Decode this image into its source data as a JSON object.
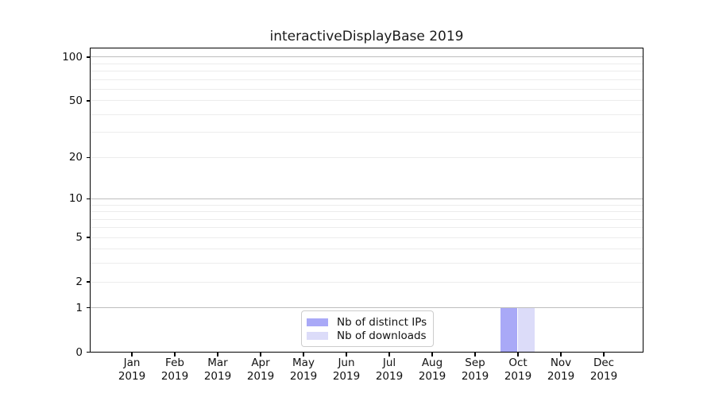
{
  "title": "interactiveDisplayBase 2019",
  "chart_data": {
    "type": "bar",
    "title": "interactiveDisplayBase 2019",
    "categories": [
      {
        "month": "Jan",
        "year": "2019"
      },
      {
        "month": "Feb",
        "year": "2019"
      },
      {
        "month": "Mar",
        "year": "2019"
      },
      {
        "month": "Apr",
        "year": "2019"
      },
      {
        "month": "May",
        "year": "2019"
      },
      {
        "month": "Jun",
        "year": "2019"
      },
      {
        "month": "Jul",
        "year": "2019"
      },
      {
        "month": "Aug",
        "year": "2019"
      },
      {
        "month": "Sep",
        "year": "2019"
      },
      {
        "month": "Oct",
        "year": "2019"
      },
      {
        "month": "Nov",
        "year": "2019"
      },
      {
        "month": "Dec",
        "year": "2019"
      }
    ],
    "series": [
      {
        "name": "Nb of distinct IPs",
        "color": "#a9a9f7",
        "values": [
          0,
          0,
          0,
          0,
          0,
          0,
          0,
          0,
          0,
          1,
          0,
          0
        ]
      },
      {
        "name": "Nb of downloads",
        "color": "#dcdcf9",
        "values": [
          0,
          0,
          0,
          0,
          0,
          0,
          0,
          0,
          0,
          1,
          0,
          0
        ]
      }
    ],
    "xlabel": "",
    "ylabel": "",
    "y_axis": {
      "scale": "log1p",
      "min": 0,
      "max": 116,
      "tick_values": [
        0,
        1,
        2,
        5,
        10,
        20,
        50,
        100
      ],
      "decade_gridlines": [
        1,
        10,
        100
      ],
      "minor_gridlines": [
        2,
        3,
        4,
        5,
        6,
        7,
        8,
        9,
        20,
        30,
        40,
        50,
        60,
        70,
        80,
        90
      ]
    },
    "grid": "horizontal",
    "legend_position": "lower center, inside plot"
  },
  "legend": {
    "items": [
      {
        "label": "Nb of distinct IPs"
      },
      {
        "label": "Nb of downloads"
      }
    ]
  }
}
